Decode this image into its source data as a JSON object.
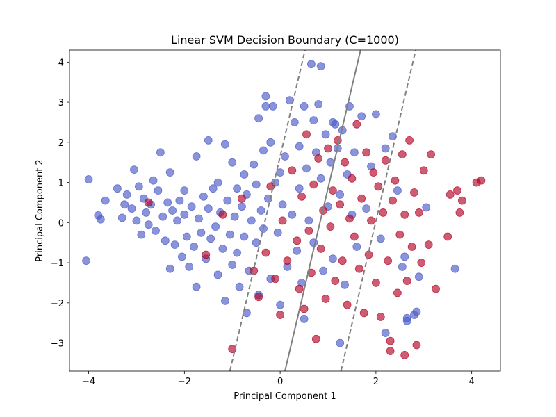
{
  "chart_data": {
    "type": "scatter",
    "title": "Linear SVM Decision Boundary (C=1000)",
    "xlabel": "Principal Component 1",
    "ylabel": "Principal Component 2",
    "xlim": [
      -4.4,
      4.6
    ],
    "ylim": [
      -3.7,
      4.3
    ],
    "x_ticks": [
      -4,
      -2,
      0,
      2,
      4
    ],
    "y_ticks": [
      -3,
      -2,
      -1,
      0,
      1,
      2,
      3,
      4
    ],
    "x_tick_labels": [
      "−4",
      "−2",
      "0",
      "2",
      "4"
    ],
    "y_tick_labels": [
      "−3",
      "−2",
      "−1",
      "0",
      "1",
      "2",
      "3",
      "4"
    ],
    "grid": false,
    "colors": {
      "class_0": "#4b5bc8",
      "class_1": "#b40426",
      "boundary": "#808080"
    },
    "decision_lines": [
      {
        "role": "decision-boundary",
        "style": "solid",
        "points": [
          [
            0.1,
            -3.7
          ],
          [
            1.68,
            4.3
          ]
        ]
      },
      {
        "role": "margin-left",
        "style": "dashed",
        "points": [
          [
            -1.05,
            -3.7
          ],
          [
            0.52,
            4.3
          ]
        ]
      },
      {
        "role": "margin-right",
        "style": "dashed",
        "points": [
          [
            1.27,
            -3.7
          ],
          [
            2.83,
            4.3
          ]
        ]
      }
    ],
    "series": [
      {
        "class": 0,
        "points": [
          [
            -4.0,
            1.08
          ],
          [
            -4.05,
            -0.95
          ],
          [
            -3.8,
            0.18
          ],
          [
            -3.75,
            0.08
          ],
          [
            -3.65,
            0.55
          ],
          [
            -3.4,
            0.85
          ],
          [
            -3.3,
            0.12
          ],
          [
            -3.25,
            0.45
          ],
          [
            -3.2,
            0.7
          ],
          [
            -3.1,
            0.35
          ],
          [
            -3.05,
            1.32
          ],
          [
            -3.0,
            0.05
          ],
          [
            -2.95,
            0.9
          ],
          [
            -2.9,
            -0.3
          ],
          [
            -2.85,
            0.6
          ],
          [
            -2.8,
            0.25
          ],
          [
            -2.75,
            -0.05
          ],
          [
            -2.7,
            0.45
          ],
          [
            -2.65,
            1.05
          ],
          [
            -2.6,
            -0.2
          ],
          [
            -2.55,
            0.8
          ],
          [
            -2.5,
            1.75
          ],
          [
            -2.45,
            0.15
          ],
          [
            -2.4,
            -0.45
          ],
          [
            -2.35,
            0.5
          ],
          [
            -2.3,
            -1.15
          ],
          [
            -2.3,
            1.25
          ],
          [
            -2.25,
            0.3
          ],
          [
            -2.2,
            -0.55
          ],
          [
            -2.15,
            0.05
          ],
          [
            -2.1,
            0.55
          ],
          [
            -2.05,
            -0.85
          ],
          [
            -2.0,
            0.2
          ],
          [
            -2.0,
            0.8
          ],
          [
            -1.95,
            -0.35
          ],
          [
            -1.9,
            -1.1
          ],
          [
            -1.85,
            0.4
          ],
          [
            -1.8,
            -0.6
          ],
          [
            -1.75,
            1.65
          ],
          [
            -1.75,
            -1.6
          ],
          [
            -1.7,
            0.1
          ],
          [
            -1.65,
            -0.25
          ],
          [
            -1.6,
            0.65
          ],
          [
            -1.55,
            -0.9
          ],
          [
            -1.5,
            2.05
          ],
          [
            -1.5,
            0.35
          ],
          [
            -1.45,
            -0.4
          ],
          [
            -1.4,
            0.85
          ],
          [
            -1.35,
            -0.1
          ],
          [
            -1.3,
            -1.3
          ],
          [
            -1.3,
            1.0
          ],
          [
            -1.25,
            0.25
          ],
          [
            -1.2,
            -0.65
          ],
          [
            -1.15,
            1.95
          ],
          [
            -1.15,
            -1.95
          ],
          [
            -1.1,
            0.55
          ],
          [
            -1.05,
            -0.3
          ],
          [
            -1.0,
            1.5
          ],
          [
            -1.0,
            -1.05
          ],
          [
            -0.95,
            0.15
          ],
          [
            -0.9,
            -0.75
          ],
          [
            -0.9,
            0.85
          ],
          [
            -0.85,
            -1.6
          ],
          [
            -0.8,
            0.4
          ],
          [
            -0.75,
            1.2
          ],
          [
            -0.75,
            -0.35
          ],
          [
            -0.7,
            -2.25
          ],
          [
            -0.7,
            0.7
          ],
          [
            -0.65,
            -1.2
          ],
          [
            -0.6,
            0.05
          ],
          [
            -0.55,
            1.45
          ],
          [
            -0.5,
            -0.5
          ],
          [
            -0.5,
            0.95
          ],
          [
            -0.45,
            2.6
          ],
          [
            -0.45,
            -1.8
          ],
          [
            -0.4,
            0.3
          ],
          [
            -0.35,
            1.8
          ],
          [
            -0.35,
            -0.15
          ],
          [
            -0.3,
            3.15
          ],
          [
            -0.3,
            2.9
          ],
          [
            -0.25,
            0.6
          ],
          [
            -0.2,
            2.0
          ],
          [
            -0.2,
            -1.4
          ],
          [
            -0.15,
            2.9
          ],
          [
            -0.1,
            1.0
          ],
          [
            -0.05,
            -0.25
          ],
          [
            0.0,
            1.25
          ],
          [
            0.0,
            -2.05
          ],
          [
            0.05,
            0.45
          ],
          [
            0.1,
            1.65
          ],
          [
            0.15,
            -1.1
          ],
          [
            0.2,
            3.05
          ],
          [
            0.25,
            0.2
          ],
          [
            0.3,
            2.5
          ],
          [
            0.35,
            -0.7
          ],
          [
            0.4,
            1.9
          ],
          [
            0.4,
            0.85
          ],
          [
            0.45,
            -1.5
          ],
          [
            0.5,
            2.9
          ],
          [
            0.5,
            -2.4
          ],
          [
            0.55,
            1.35
          ],
          [
            0.6,
            0.05
          ],
          [
            0.65,
            3.95
          ],
          [
            0.7,
            2.55
          ],
          [
            0.7,
            -0.5
          ],
          [
            0.75,
            1.75
          ],
          [
            0.8,
            2.95
          ],
          [
            0.85,
            3.9
          ],
          [
            0.85,
            1.1
          ],
          [
            0.9,
            -1.2
          ],
          [
            0.95,
            2.2
          ],
          [
            1.0,
            0.4
          ],
          [
            1.05,
            1.5
          ],
          [
            1.1,
            2.5
          ],
          [
            1.1,
            -0.9
          ],
          [
            1.15,
            2.45
          ],
          [
            1.2,
            1.85
          ],
          [
            1.25,
            0.7
          ],
          [
            1.25,
            -3.0
          ],
          [
            1.3,
            2.3
          ],
          [
            1.35,
            -1.55
          ],
          [
            1.4,
            1.2
          ],
          [
            1.45,
            2.9
          ],
          [
            1.5,
            0.2
          ],
          [
            1.55,
            1.75
          ],
          [
            1.6,
            -0.6
          ],
          [
            1.7,
            2.65
          ],
          [
            1.8,
            0.35
          ],
          [
            1.9,
            1.4
          ],
          [
            2.0,
            2.7
          ],
          [
            2.1,
            -0.4
          ],
          [
            2.2,
            1.85
          ],
          [
            2.2,
            -2.75
          ],
          [
            2.35,
            2.15
          ],
          [
            2.45,
            0.8
          ],
          [
            2.55,
            -1.1
          ],
          [
            2.6,
            -0.85
          ],
          [
            2.65,
            -2.45
          ],
          [
            2.65,
            -2.38
          ],
          [
            2.8,
            -2.3
          ],
          [
            2.85,
            -2.22
          ],
          [
            2.9,
            -1.35
          ],
          [
            3.05,
            0.38
          ],
          [
            3.65,
            -1.15
          ]
        ]
      },
      {
        "class": 1,
        "points": [
          [
            -2.75,
            0.5
          ],
          [
            -1.55,
            -0.8
          ],
          [
            -1.2,
            0.2
          ],
          [
            -0.8,
            0.6
          ],
          [
            -0.55,
            -1.2
          ],
          [
            -0.45,
            -1.85
          ],
          [
            -0.3,
            -0.75
          ],
          [
            -0.2,
            0.9
          ],
          [
            -0.1,
            -1.4
          ],
          [
            0.0,
            -2.3
          ],
          [
            0.05,
            0.05
          ],
          [
            0.15,
            -0.95
          ],
          [
            0.25,
            1.3
          ],
          [
            0.35,
            -0.45
          ],
          [
            0.4,
            -1.65
          ],
          [
            0.45,
            0.65
          ],
          [
            0.5,
            -2.15
          ],
          [
            0.55,
            2.2
          ],
          [
            0.6,
            -0.2
          ],
          [
            0.65,
            -1.25
          ],
          [
            0.7,
            0.95
          ],
          [
            0.75,
            -2.9
          ],
          [
            0.8,
            1.6
          ],
          [
            0.85,
            -0.65
          ],
          [
            0.9,
            0.3
          ],
          [
            0.95,
            -1.9
          ],
          [
            1.0,
            1.85
          ],
          [
            1.05,
            -0.1
          ],
          [
            1.1,
            0.8
          ],
          [
            1.15,
            -1.45
          ],
          [
            1.2,
            2.05
          ],
          [
            1.25,
            0.45
          ],
          [
            1.3,
            -0.95
          ],
          [
            1.35,
            1.5
          ],
          [
            1.4,
            -2.05
          ],
          [
            1.45,
            0.1
          ],
          [
            1.5,
            1.1
          ],
          [
            1.55,
            -0.35
          ],
          [
            1.6,
            2.45
          ],
          [
            1.65,
            -1.15
          ],
          [
            1.7,
            0.6
          ],
          [
            1.75,
            -2.25
          ],
          [
            1.8,
            1.75
          ],
          [
            1.85,
            -0.8
          ],
          [
            1.9,
            0.05
          ],
          [
            1.95,
            1.25
          ],
          [
            2.0,
            -1.5
          ],
          [
            2.05,
            0.9
          ],
          [
            2.1,
            -2.35
          ],
          [
            2.15,
            0.25
          ],
          [
            2.2,
            1.55
          ],
          [
            2.25,
            -0.95
          ],
          [
            2.3,
            -2.95
          ],
          [
            2.35,
            0.55
          ],
          [
            2.4,
            1.05
          ],
          [
            2.45,
            -1.75
          ],
          [
            2.5,
            -0.3
          ],
          [
            2.55,
            1.7
          ],
          [
            2.6,
            0.2
          ],
          [
            2.65,
            -1.45
          ],
          [
            2.7,
            2.05
          ],
          [
            2.75,
            -0.6
          ],
          [
            2.8,
            0.75
          ],
          [
            2.85,
            -3.05
          ],
          [
            2.9,
            0.25
          ],
          [
            2.95,
            -1.0
          ],
          [
            3.0,
            1.3
          ],
          [
            3.1,
            -0.55
          ],
          [
            3.15,
            1.7
          ],
          [
            3.25,
            -1.65
          ],
          [
            3.5,
            -0.35
          ],
          [
            3.55,
            0.7
          ],
          [
            3.7,
            0.8
          ],
          [
            3.75,
            0.25
          ],
          [
            3.8,
            0.55
          ],
          [
            4.1,
            1.0
          ],
          [
            4.2,
            1.05
          ],
          [
            -1.0,
            -3.15
          ],
          [
            2.3,
            -3.2
          ],
          [
            2.6,
            -3.3
          ]
        ]
      }
    ]
  }
}
